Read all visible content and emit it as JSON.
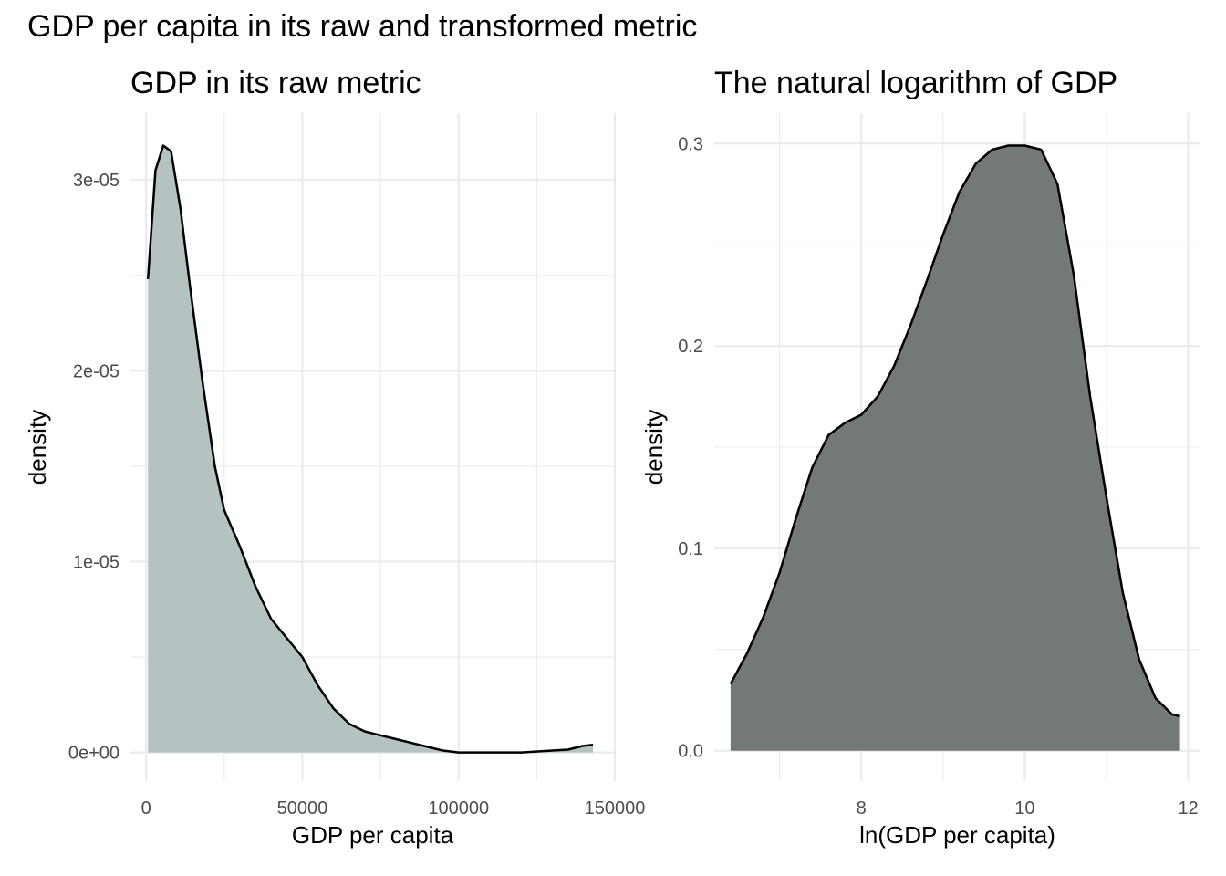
{
  "figure_title": "GDP per capita in its raw and transformed metric",
  "colors": {
    "raw_fill": "#b4c3c2",
    "log_fill": "#727978",
    "line": "#000000",
    "grid": "#ebebeb"
  },
  "chart_data": [
    {
      "type": "area",
      "title": "GDP in its raw metric",
      "xlabel": "GDP per capita",
      "ylabel": "density",
      "xlim": [
        -5000,
        150000
      ],
      "ylim": [
        -1.5e-06,
        3.35e-05
      ],
      "x_ticks": [
        0,
        50000,
        100000,
        150000
      ],
      "x_tick_labels": [
        "0",
        "50000",
        "100000",
        "150000"
      ],
      "y_ticks": [
        0,
        1e-05,
        2e-05,
        3e-05
      ],
      "y_tick_labels": [
        "0e+00",
        "1e-05",
        "2e-05",
        "3e-05"
      ],
      "x": [
        600,
        3000,
        5500,
        8000,
        11000,
        14000,
        18000,
        22000,
        25000,
        30000,
        35000,
        40000,
        45000,
        50000,
        55000,
        60000,
        65000,
        70000,
        75000,
        80000,
        85000,
        90000,
        95000,
        100000,
        110000,
        120000,
        130000,
        135000,
        140000,
        143000
      ],
      "y": [
        2.48e-05,
        3.05e-05,
        3.18e-05,
        3.15e-05,
        2.85e-05,
        2.45e-05,
        1.95e-05,
        1.5e-05,
        1.27e-05,
        1.08e-05,
        8.7e-06,
        7e-06,
        6e-06,
        5e-06,
        3.5e-06,
        2.3e-06,
        1.5e-06,
        1.1e-06,
        9e-07,
        7e-07,
        5e-07,
        3e-07,
        1e-07,
        0.0,
        0.0,
        0.0,
        1e-07,
        1.5e-07,
        3.5e-07,
        4e-07
      ]
    },
    {
      "type": "area",
      "title": "The natural logarithm of GDP",
      "xlabel": "ln(GDP per capita)",
      "ylabel": "density",
      "xlim": [
        6.2,
        12.15
      ],
      "ylim": [
        -0.015,
        0.315
      ],
      "x_ticks": [
        8,
        10,
        12
      ],
      "x_tick_labels": [
        "8",
        "10",
        "12"
      ],
      "y_ticks": [
        0,
        0.1,
        0.2,
        0.3
      ],
      "y_tick_labels": [
        "0.0",
        "0.1",
        "0.2",
        "0.3"
      ],
      "x": [
        6.4,
        6.6,
        6.8,
        7.0,
        7.2,
        7.4,
        7.6,
        7.8,
        8.0,
        8.2,
        8.4,
        8.6,
        8.8,
        9.0,
        9.2,
        9.4,
        9.6,
        9.8,
        10.0,
        10.2,
        10.4,
        10.6,
        10.8,
        11.0,
        11.2,
        11.4,
        11.6,
        11.8,
        11.9
      ],
      "y": [
        0.033,
        0.048,
        0.066,
        0.088,
        0.115,
        0.14,
        0.156,
        0.162,
        0.166,
        0.175,
        0.19,
        0.21,
        0.232,
        0.255,
        0.276,
        0.29,
        0.297,
        0.299,
        0.299,
        0.297,
        0.28,
        0.235,
        0.175,
        0.125,
        0.078,
        0.045,
        0.026,
        0.018,
        0.017
      ]
    }
  ]
}
